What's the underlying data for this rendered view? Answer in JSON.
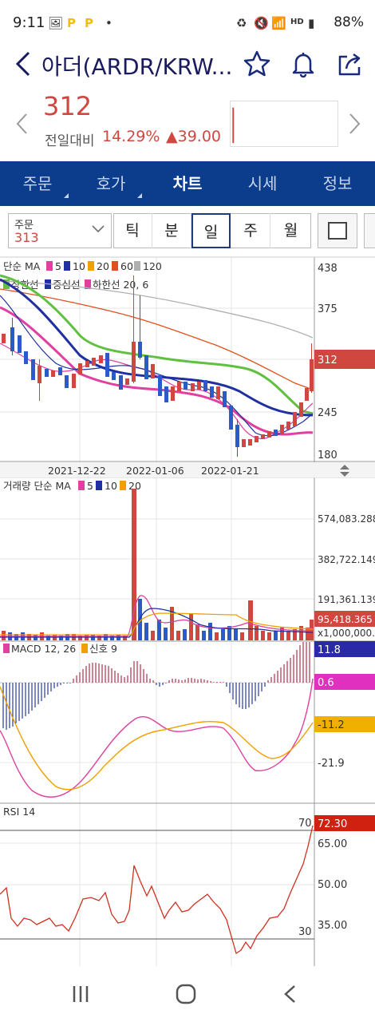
{
  "status": {
    "time": "9:11",
    "battery": "88%",
    "hd_label": "HD"
  },
  "header": {
    "title": "아더(ARDR/KRW..."
  },
  "quote": {
    "price": "312",
    "change_label": "전일대비",
    "change_pct": "14.29%",
    "change_amt": "▲39.00"
  },
  "tabs": [
    {
      "label": "주문",
      "has_sub": true
    },
    {
      "label": "호가",
      "has_sub": true
    },
    {
      "label": "차트",
      "active": true
    },
    {
      "label": "시세"
    },
    {
      "label": "정보"
    }
  ],
  "order": {
    "label": "주문",
    "value": "313"
  },
  "periods": [
    "틱",
    "분",
    "일",
    "주",
    "월"
  ],
  "active_period": "일",
  "price_chart": {
    "ma_label": "단순 MA",
    "ma_periods": [
      "5",
      "10",
      "20",
      "60",
      "120"
    ],
    "band_label": "상한선",
    "band_mid": "중심선",
    "band_low": "하한선 20, 6",
    "axis_ticks": [
      "438",
      "375",
      "312",
      "245",
      "180"
    ],
    "last_price_badge": "312",
    "dates": [
      "2021-12-22",
      "2022-01-06",
      "2022-01-21"
    ]
  },
  "volume_chart": {
    "label": "거래량 단순 MA",
    "ma_periods": [
      "5",
      "10",
      "20"
    ],
    "axis_ticks": [
      "574,083.288",
      "382,722.149",
      "191,361.139"
    ],
    "badge_value": "95,418.365",
    "unit": "x1,000,000."
  },
  "macd_chart": {
    "label": "MACD 12, 26",
    "signal_label": "신호 9",
    "badges": [
      "11.8",
      "0.6",
      "-11.2"
    ],
    "axis_tick": "-21.9"
  },
  "rsi_chart": {
    "label": "RSI 14",
    "upper_line": "70",
    "lower_line": "30",
    "badge": "72.30",
    "axis_ticks": [
      "65.00",
      "50.00",
      "35.00"
    ]
  },
  "colors": {
    "brand_blue": "#0c3c8c",
    "up_red": "#d0473f",
    "down_blue": "#2a5bc8",
    "ma5": "#e040a0",
    "ma10": "#2030a0",
    "ma20": "#f0a000",
    "ma60": "#e05020",
    "ma120": "#b0b0b0",
    "band_green": "#60c040"
  }
}
